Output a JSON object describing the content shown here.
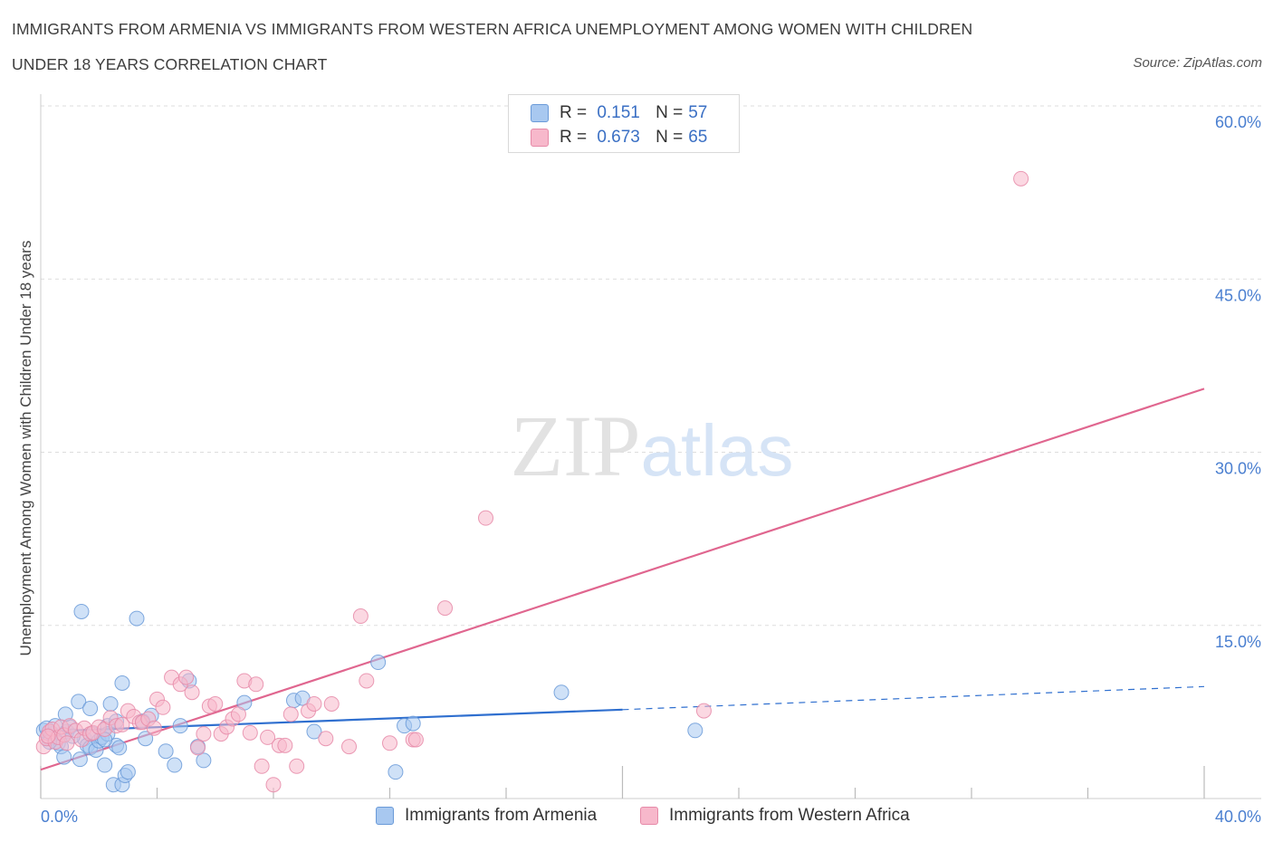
{
  "title_line1": "IMMIGRANTS FROM ARMENIA VS IMMIGRANTS FROM WESTERN AFRICA UNEMPLOYMENT AMONG WOMEN WITH CHILDREN",
  "title_line2": "UNDER 18 YEARS CORRELATION CHART",
  "source": "Source: ZipAtlas.com",
  "watermark": "ZIPatlas",
  "legend": {
    "r_label": "R =",
    "n_label": "N =",
    "rows": [
      {
        "r": "0.151",
        "n": "57"
      },
      {
        "r": "0.673",
        "n": "65"
      }
    ]
  },
  "colors": {
    "armenia_fill": "#a8c8f0",
    "armenia_stroke": "#6a9ad8",
    "armenia_line": "#2f6fcf",
    "wafrica_fill": "#f7b8cb",
    "wafrica_stroke": "#e68aa8",
    "wafrica_line": "#e0668f",
    "grid": "#dddddd",
    "tick_text": "#4a7fd0"
  },
  "chart_data": {
    "type": "scatter",
    "title": "IMMIGRANTS FROM ARMENIA VS IMMIGRANTS FROM WESTERN AFRICA UNEMPLOYMENT AMONG WOMEN WITH CHILDREN UNDER 18 YEARS CORRELATION CHART",
    "xlabel": "",
    "ylabel": "Unemployment Among Women with Children Under 18 years",
    "xlim": [
      0,
      40
    ],
    "ylim": [
      0,
      60
    ],
    "x_tick_labels": [
      "0.0%",
      "40.0%"
    ],
    "y_ticks": [
      15,
      30,
      45,
      60
    ],
    "y_tick_labels": [
      "15.0%",
      "30.0%",
      "45.0%",
      "60.0%"
    ],
    "grid": true,
    "legend_position": "top-center",
    "series": [
      {
        "name": "Immigrants from Armenia",
        "r": 0.151,
        "n": 57,
        "trend": {
          "x0": 0,
          "y0": 5.8,
          "x1": 20,
          "y1": 7.7,
          "dash_to_x": 40,
          "dash_to_y": 9.7
        },
        "points": [
          [
            0.1,
            5.9
          ],
          [
            0.2,
            6.1
          ],
          [
            0.3,
            5.2
          ],
          [
            0.4,
            5.6
          ],
          [
            0.5,
            6.3
          ],
          [
            0.6,
            4.8
          ],
          [
            0.7,
            4.5
          ],
          [
            0.8,
            3.6
          ],
          [
            0.9,
            5.8
          ],
          [
            1.0,
            6.2
          ],
          [
            0.85,
            7.3
          ],
          [
            1.3,
            8.4
          ],
          [
            1.5,
            5.2
          ],
          [
            1.6,
            4.6
          ],
          [
            1.7,
            7.8
          ],
          [
            1.8,
            5.6
          ],
          [
            1.35,
            3.4
          ],
          [
            1.4,
            16.2
          ],
          [
            1.7,
            4.4
          ],
          [
            1.9,
            4.2
          ],
          [
            2.0,
            5.0
          ],
          [
            2.1,
            5.3
          ],
          [
            2.2,
            2.9
          ],
          [
            2.3,
            6.3
          ],
          [
            2.5,
            1.2
          ],
          [
            2.6,
            4.6
          ],
          [
            2.3,
            5.6
          ],
          [
            2.2,
            5.1
          ],
          [
            2.4,
            8.2
          ],
          [
            2.6,
            6.7
          ],
          [
            2.7,
            4.4
          ],
          [
            2.8,
            10.0
          ],
          [
            2.8,
            1.2
          ],
          [
            2.9,
            2.0
          ],
          [
            3.0,
            2.3
          ],
          [
            3.3,
            15.6
          ],
          [
            3.5,
            6.7
          ],
          [
            3.6,
            5.2
          ],
          [
            3.8,
            7.2
          ],
          [
            4.3,
            4.1
          ],
          [
            4.6,
            2.9
          ],
          [
            4.8,
            6.3
          ],
          [
            5.1,
            10.2
          ],
          [
            5.4,
            4.5
          ],
          [
            5.6,
            3.3
          ],
          [
            7.0,
            8.3
          ],
          [
            8.7,
            8.5
          ],
          [
            9.0,
            8.7
          ],
          [
            9.4,
            5.8
          ],
          [
            11.6,
            11.8
          ],
          [
            12.2,
            2.3
          ],
          [
            12.5,
            6.3
          ],
          [
            12.8,
            6.5
          ],
          [
            17.9,
            9.2
          ],
          [
            22.5,
            5.9
          ],
          [
            0.3,
            4.9
          ],
          [
            1.1,
            5.4
          ]
        ]
      },
      {
        "name": "Immigrants from Western Africa",
        "r": 0.673,
        "n": 65,
        "trend": {
          "x0": 0,
          "y0": 2.5,
          "x1": 40,
          "y1": 35.5
        },
        "points": [
          [
            0.1,
            4.5
          ],
          [
            0.2,
            5.2
          ],
          [
            0.3,
            5.8
          ],
          [
            0.4,
            6.0
          ],
          [
            0.5,
            4.9
          ],
          [
            0.6,
            5.3
          ],
          [
            0.7,
            6.2
          ],
          [
            0.8,
            5.5
          ],
          [
            0.9,
            4.8
          ],
          [
            1.0,
            6.3
          ],
          [
            1.2,
            5.9
          ],
          [
            1.4,
            5.1
          ],
          [
            1.5,
            6.1
          ],
          [
            1.7,
            5.6
          ],
          [
            1.8,
            5.7
          ],
          [
            2.0,
            6.2
          ],
          [
            2.2,
            6.0
          ],
          [
            2.4,
            7.0
          ],
          [
            2.6,
            6.3
          ],
          [
            2.8,
            6.4
          ],
          [
            3.0,
            7.6
          ],
          [
            3.2,
            7.1
          ],
          [
            3.4,
            6.6
          ],
          [
            3.5,
            6.6
          ],
          [
            3.7,
            6.9
          ],
          [
            3.9,
            6.1
          ],
          [
            4.0,
            8.6
          ],
          [
            4.2,
            7.9
          ],
          [
            4.5,
            10.5
          ],
          [
            4.8,
            9.9
          ],
          [
            5.0,
            10.5
          ],
          [
            5.2,
            9.2
          ],
          [
            5.4,
            4.4
          ],
          [
            5.6,
            5.6
          ],
          [
            5.8,
            8.0
          ],
          [
            6.0,
            8.2
          ],
          [
            6.2,
            5.6
          ],
          [
            6.4,
            6.2
          ],
          [
            6.6,
            6.9
          ],
          [
            6.8,
            7.3
          ],
          [
            7.0,
            10.2
          ],
          [
            7.2,
            5.7
          ],
          [
            7.4,
            9.9
          ],
          [
            7.6,
            2.8
          ],
          [
            7.8,
            5.3
          ],
          [
            8.0,
            1.2
          ],
          [
            8.2,
            4.6
          ],
          [
            8.4,
            4.6
          ],
          [
            8.6,
            7.3
          ],
          [
            8.8,
            2.8
          ],
          [
            9.2,
            7.6
          ],
          [
            9.4,
            8.2
          ],
          [
            9.8,
            5.2
          ],
          [
            10.0,
            8.2
          ],
          [
            10.6,
            4.5
          ],
          [
            11.0,
            15.8
          ],
          [
            11.2,
            10.2
          ],
          [
            12.0,
            4.8
          ],
          [
            12.8,
            5.1
          ],
          [
            12.9,
            5.1
          ],
          [
            13.9,
            16.5
          ],
          [
            15.3,
            24.3
          ],
          [
            22.8,
            7.6
          ],
          [
            33.7,
            53.7
          ],
          [
            0.25,
            5.4
          ]
        ]
      }
    ]
  }
}
